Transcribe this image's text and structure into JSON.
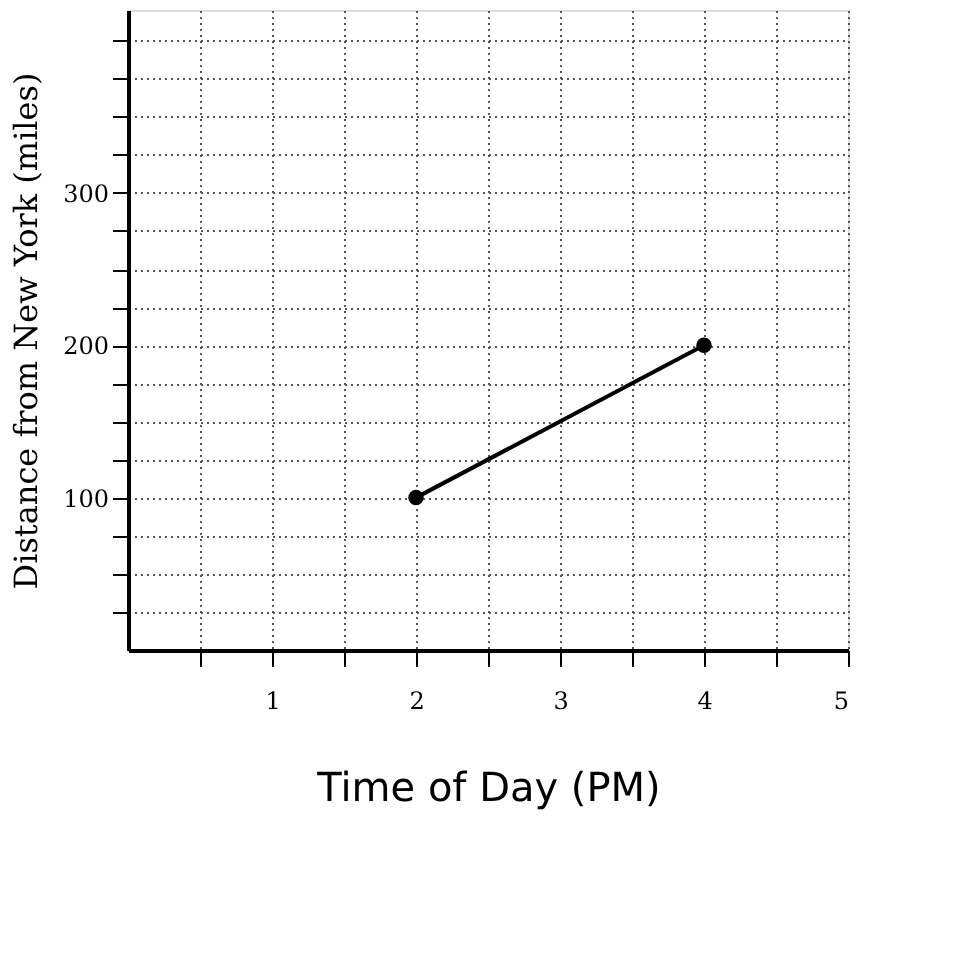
{
  "chart_data": {
    "type": "line",
    "xlabel": "Time of Day (PM)",
    "ylabel": "Distance from New York (miles)",
    "x": [
      2,
      4
    ],
    "series": [
      {
        "color": "#000000",
        "values": [
          100,
          200
        ]
      }
    ],
    "xlim": [
      0,
      5
    ],
    "ylim": [
      0,
      420
    ],
    "xticks": [
      {
        "value": 0.5,
        "label": null
      },
      1,
      {
        "value": 1.5,
        "label": null
      },
      2,
      {
        "value": 2.5,
        "label": null
      },
      3,
      {
        "value": 3.5,
        "label": null
      },
      4,
      {
        "value": 4.5,
        "label": null
      },
      5
    ],
    "yticks": [
      {
        "value": 25,
        "label": null
      },
      {
        "value": 50,
        "label": null
      },
      {
        "value": 75,
        "label": null
      },
      100,
      {
        "value": 125,
        "label": null
      },
      {
        "value": 150,
        "label": null
      },
      {
        "value": 175,
        "label": null
      },
      200,
      {
        "value": 225,
        "label": null
      },
      {
        "value": 250,
        "label": null
      },
      {
        "value": 275,
        "label": null
      },
      300,
      {
        "value": 325,
        "label": null
      },
      {
        "value": 350,
        "label": null
      },
      {
        "value": 375,
        "label": null
      },
      {
        "value": 400,
        "label": null
      }
    ],
    "grid": true,
    "marker": "circle",
    "line_style": "solid"
  }
}
